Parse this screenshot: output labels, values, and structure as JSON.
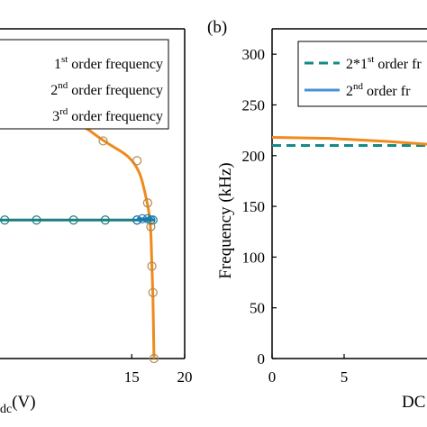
{
  "chart_data": [
    {
      "panel": "a",
      "type": "scatter",
      "xlabel_visible": "dc(V)",
      "xlabel_pre": "",
      "xlabel_sub": "dc",
      "xlabel_unit": "(V)",
      "xticks": [
        15,
        20
      ],
      "xlim": [
        0,
        20
      ],
      "ylim": [
        0,
        250
      ],
      "legend": {
        "placement": "top-right",
        "entries": [
          {
            "pre": "1",
            "sup": "st",
            "post": " order frequency"
          },
          {
            "pre": "2",
            "sup": "nd",
            "post": " order frequency"
          },
          {
            "pre": "3",
            "sup": "rd",
            "post": " order frequency"
          }
        ]
      },
      "series": [
        {
          "key": "first",
          "color": "#1f77b4",
          "points": [
            [
              15.5,
              105
            ],
            [
              16.0,
              106
            ],
            [
              16.5,
              106
            ],
            [
              17.0,
              105
            ]
          ]
        },
        {
          "key": "second",
          "color": "#1a7f7f",
          "line": [
            [
              0,
              105
            ],
            [
              17.2,
              105
            ]
          ],
          "points": [
            [
              0.5,
              105
            ],
            [
              3.0,
              105
            ],
            [
              6.0,
              105
            ],
            [
              9.5,
              105
            ],
            [
              12.5,
              105
            ],
            [
              15.5,
              105
            ],
            [
              16.8,
              105
            ]
          ]
        },
        {
          "key": "third",
          "color": "#f08a1c",
          "points": [
            [
              0.5,
              200
            ],
            [
              3.5,
              200
            ],
            [
              10.2,
              178
            ],
            [
              12.3,
              165
            ],
            [
              15.5,
              150
            ],
            [
              16.5,
              118
            ],
            [
              16.8,
              100
            ],
            [
              16.9,
              70
            ],
            [
              17.0,
              50
            ],
            [
              17.1,
              0
            ]
          ]
        }
      ]
    },
    {
      "panel": "b",
      "type": "line",
      "panel_label": "(b)",
      "ylabel": "Frequency (kHz)",
      "xlabel_visible": "DC",
      "yticks": [
        0,
        50,
        100,
        150,
        200,
        250,
        300
      ],
      "xticks": [
        0,
        5
      ],
      "ylim": [
        0,
        325
      ],
      "xlim": [
        0,
        13
      ],
      "legend": {
        "placement": "top-right",
        "entries": [
          {
            "pre": "2*1",
            "sup": "st",
            "post": " order fr"
          },
          {
            "pre": "2",
            "sup": "nd",
            "post": " order fr"
          }
        ]
      },
      "series": [
        {
          "key": "two-times-first",
          "style": "dashed",
          "color": "#138a84",
          "points": [
            [
              0,
              210
            ],
            [
              13,
              210
            ]
          ]
        },
        {
          "key": "second-fit",
          "style": "solid",
          "color": "#f08a1c",
          "points": [
            [
              0,
              218
            ],
            [
              4,
              217
            ],
            [
              8,
              214
            ],
            [
              13,
              209
            ]
          ]
        }
      ]
    }
  ]
}
